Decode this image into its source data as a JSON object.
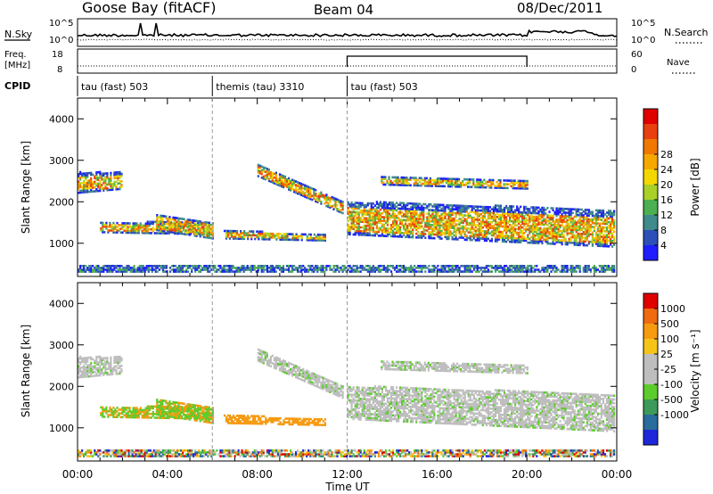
{
  "header": {
    "station": "Goose Bay (fitACF)",
    "beam": "Beam 04",
    "date": "08/Dec/2011"
  },
  "panels": {
    "nsky_label": "N.Sky",
    "nsearch_label": "N.Search",
    "noise_ticks": [
      "10^5",
      "10^0"
    ],
    "freq_label_1": "Freq.",
    "freq_label_2": "[MHz]",
    "freq_ticks": [
      "18",
      "8"
    ],
    "nave_label": "Nave",
    "nave_ticks": [
      "60",
      "0"
    ],
    "cpid_label": "CPID",
    "cpid_segments": [
      {
        "label": "tau (fast) 503",
        "start_hr": 0,
        "end_hr": 6
      },
      {
        "label": "themis (tau) 3310",
        "start_hr": 6,
        "end_hr": 12
      },
      {
        "label": "tau (fast) 503",
        "start_hr": 12,
        "end_hr": 24
      }
    ]
  },
  "chart_data": [
    {
      "type": "heatmap",
      "name": "power",
      "ylabel": "Slant Range [km]",
      "ylim": [
        200,
        4500
      ],
      "yticks": [
        "1000",
        "2000",
        "3000",
        "4000"
      ],
      "xlim_hours": [
        0,
        24
      ],
      "colorbar_label": "Power [dB]",
      "colorbar_ticks": [
        "4",
        "8",
        "12",
        "16",
        "20",
        "24",
        "28"
      ],
      "colorbar_colors": [
        "#1e1eff",
        "#2d4fb8",
        "#3f8a8a",
        "#4cb050",
        "#a8d028",
        "#f3d800",
        "#f6a800",
        "#f07800",
        "#e84010",
        "#e00000"
      ]
    },
    {
      "type": "heatmap",
      "name": "velocity",
      "ylabel": "Slant Range [km]",
      "ylim": [
        200,
        4500
      ],
      "yticks": [
        "1000",
        "2000",
        "3000",
        "4000"
      ],
      "xlim_hours": [
        0,
        24
      ],
      "colorbar_label": "Velocity [m s⁻¹]",
      "colorbar_ticks": [
        "1000",
        "500",
        "100",
        "25",
        "-25",
        "-100",
        "-500",
        "-1000"
      ],
      "colorbar_colors": [
        "#1e28d8",
        "#2a6c9c",
        "#3e9a5a",
        "#5ccc2c",
        "#bebebe",
        "#bebebe",
        "#f6c418",
        "#f69a10",
        "#f06a10",
        "#e00000"
      ]
    }
  ],
  "xaxis": {
    "ticks": [
      "00:00",
      "04:00",
      "08:00",
      "12:00",
      "16:00",
      "20:00",
      "00:00"
    ],
    "label": "Time UT"
  }
}
